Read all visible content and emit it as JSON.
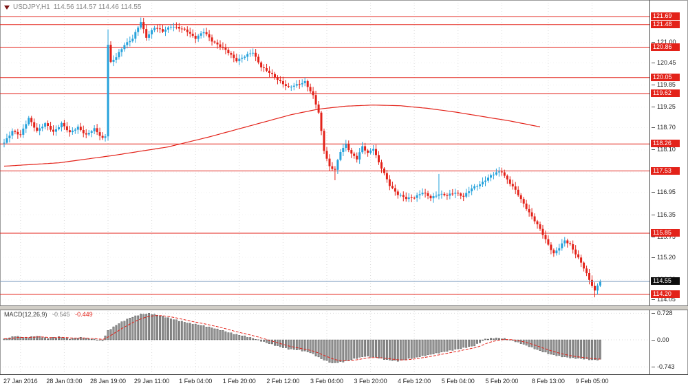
{
  "title": {
    "symbol": "USDJPY,H1",
    "ohlc": "114.56 114.57 114.46 114.55"
  },
  "colors": {
    "up": "#26a2db",
    "down": "#e32219",
    "level": "#e32219",
    "ma": "#e32219",
    "signal": "#e32219",
    "bid_line": "#7f9fc0",
    "level_label_bg": "#e32219",
    "bid_label_bg": "#0d0d0d",
    "macd_bar_fill": "#909090",
    "macd_bar_stroke": "#4a4a4a",
    "grid": "#dadada",
    "axis_text": "#1f1f1f",
    "title_text": "#878787"
  },
  "chart_data": {
    "type": "candlestick",
    "symbol": "USDJPY",
    "timeframe": "H1",
    "quote": {
      "open": 114.56,
      "high": 114.57,
      "low": 114.46,
      "close": 114.55
    },
    "ylim": [
      113.92,
      122.07
    ],
    "total_bars": 236,
    "bars_drawn": 219,
    "y_ticks": [
      [
        121.0,
        "121.00"
      ],
      [
        120.45,
        "120.45"
      ],
      [
        119.85,
        "119.85"
      ],
      [
        119.25,
        "119.25"
      ],
      [
        118.7,
        "118.70"
      ],
      [
        118.1,
        "118.10"
      ],
      [
        117.5,
        "117.50"
      ],
      [
        116.95,
        "116.95"
      ],
      [
        116.35,
        "116.35"
      ],
      [
        115.75,
        "115.75"
      ],
      [
        115.2,
        "115.20"
      ],
      [
        114.6,
        "114.60"
      ],
      [
        114.05,
        "114.05"
      ]
    ],
    "x_labels": [
      [
        6,
        "27 Jan 2016"
      ],
      [
        22,
        "28 Jan 03:00"
      ],
      [
        38,
        "28 Jan 19:00"
      ],
      [
        54,
        "29 Jan 11:00"
      ],
      [
        70,
        "1 Feb 04:00"
      ],
      [
        86,
        "1 Feb 20:00"
      ],
      [
        102,
        "2 Feb 12:00"
      ],
      [
        118,
        "3 Feb 04:00"
      ],
      [
        134,
        "3 Feb 20:00"
      ],
      [
        150,
        "4 Feb 12:00"
      ],
      [
        166,
        "5 Feb 04:00"
      ],
      [
        182,
        "5 Feb 20:00"
      ],
      [
        199,
        "8 Feb 13:00"
      ],
      [
        215,
        "9 Feb 05:00"
      ]
    ],
    "levels": [
      [
        121.69,
        "121.69"
      ],
      [
        121.48,
        "121.48"
      ],
      [
        120.86,
        "120.86"
      ],
      [
        120.05,
        "120.05"
      ],
      [
        119.62,
        "119.62"
      ],
      [
        118.26,
        "118.26"
      ],
      [
        117.53,
        "117.53"
      ],
      [
        115.85,
        "115.85"
      ],
      [
        114.2,
        "114.20"
      ]
    ],
    "bid": [
      114.55,
      "114.55"
    ],
    "price_path": [
      [
        0,
        118.28
      ],
      [
        3,
        118.62
      ],
      [
        6,
        118.5
      ],
      [
        9,
        118.95
      ],
      [
        12,
        118.62
      ],
      [
        15,
        118.8
      ],
      [
        18,
        118.58
      ],
      [
        21,
        118.82
      ],
      [
        24,
        118.55
      ],
      [
        27,
        118.72
      ],
      [
        30,
        118.5
      ],
      [
        33,
        118.66
      ],
      [
        36,
        118.42
      ],
      [
        37,
        118.48
      ],
      [
        38,
        120.95
      ],
      [
        39,
        120.45
      ],
      [
        41,
        120.6
      ],
      [
        44,
        120.95
      ],
      [
        47,
        121.1
      ],
      [
        50,
        121.55
      ],
      [
        52,
        121.15
      ],
      [
        55,
        121.4
      ],
      [
        58,
        121.3
      ],
      [
        61,
        121.45
      ],
      [
        64,
        121.38
      ],
      [
        67,
        121.3
      ],
      [
        70,
        121.12
      ],
      [
        73,
        121.28
      ],
      [
        76,
        121.05
      ],
      [
        79,
        120.9
      ],
      [
        82,
        120.72
      ],
      [
        85,
        120.52
      ],
      [
        88,
        120.62
      ],
      [
        91,
        120.73
      ],
      [
        94,
        120.35
      ],
      [
        98,
        120.12
      ],
      [
        101,
        119.95
      ],
      [
        104,
        119.78
      ],
      [
        107,
        119.85
      ],
      [
        110,
        119.95
      ],
      [
        113,
        119.55
      ],
      [
        115,
        119.1
      ],
      [
        117,
        118.1
      ],
      [
        119,
        117.65
      ],
      [
        121,
        117.55
      ],
      [
        123,
        118.05
      ],
      [
        125,
        118.25
      ],
      [
        127,
        118.0
      ],
      [
        129,
        117.85
      ],
      [
        131,
        118.18
      ],
      [
        133,
        118.02
      ],
      [
        135,
        118.15
      ],
      [
        137,
        117.75
      ],
      [
        139,
        117.45
      ],
      [
        141,
        117.15
      ],
      [
        144,
        116.9
      ],
      [
        147,
        116.78
      ],
      [
        150,
        116.83
      ],
      [
        153,
        116.95
      ],
      [
        156,
        116.8
      ],
      [
        159,
        116.92
      ],
      [
        162,
        116.86
      ],
      [
        165,
        116.95
      ],
      [
        168,
        116.85
      ],
      [
        171,
        117.05
      ],
      [
        174,
        117.18
      ],
      [
        177,
        117.35
      ],
      [
        180,
        117.48
      ],
      [
        182,
        117.52
      ],
      [
        184,
        117.3
      ],
      [
        187,
        117.0
      ],
      [
        190,
        116.65
      ],
      [
        193,
        116.3
      ],
      [
        196,
        115.95
      ],
      [
        199,
        115.55
      ],
      [
        201,
        115.3
      ],
      [
        203,
        115.45
      ],
      [
        205,
        115.65
      ],
      [
        207,
        115.55
      ],
      [
        209,
        115.3
      ],
      [
        211,
        115.05
      ],
      [
        213,
        114.75
      ],
      [
        215,
        114.45
      ],
      [
        216,
        114.3
      ],
      [
        217,
        114.45
      ],
      [
        218,
        114.55
      ]
    ],
    "wick_overrides": {
      "38": [
        121.35,
        118.35
      ],
      "50": [
        121.67,
        null
      ],
      "110": [
        120.05,
        null
      ],
      "121": [
        null,
        117.28
      ],
      "159": [
        117.45,
        null
      ],
      "216": [
        null,
        114.12
      ]
    },
    "ma_path": [
      [
        0,
        117.66
      ],
      [
        20,
        117.75
      ],
      [
        40,
        117.95
      ],
      [
        60,
        118.18
      ],
      [
        75,
        118.45
      ],
      [
        90,
        118.75
      ],
      [
        105,
        119.05
      ],
      [
        115,
        119.2
      ],
      [
        125,
        119.28
      ],
      [
        135,
        119.31
      ],
      [
        145,
        119.29
      ],
      [
        155,
        119.22
      ],
      [
        165,
        119.12
      ],
      [
        175,
        119.0
      ],
      [
        185,
        118.88
      ],
      [
        196,
        118.72
      ]
    ],
    "macd": {
      "label": "MACD(12,26,9)",
      "value": -0.545,
      "signal": -0.449,
      "value_display": "-0.545",
      "signal_display": "-0.449",
      "ticks": [
        [
          0.728,
          "0.728"
        ],
        [
          0.0,
          "0.00"
        ],
        [
          -0.743,
          "-0.743"
        ]
      ],
      "path": [
        [
          0,
          0.02
        ],
        [
          4,
          0.1
        ],
        [
          8,
          0.06
        ],
        [
          12,
          0.1
        ],
        [
          16,
          0.04
        ],
        [
          20,
          0.08
        ],
        [
          24,
          0.03
        ],
        [
          28,
          0.06
        ],
        [
          32,
          0.02
        ],
        [
          36,
          -0.02
        ],
        [
          38,
          0.25
        ],
        [
          42,
          0.45
        ],
        [
          46,
          0.6
        ],
        [
          50,
          0.7
        ],
        [
          53,
          0.72
        ],
        [
          56,
          0.68
        ],
        [
          60,
          0.6
        ],
        [
          64,
          0.52
        ],
        [
          68,
          0.45
        ],
        [
          72,
          0.4
        ],
        [
          76,
          0.33
        ],
        [
          80,
          0.25
        ],
        [
          84,
          0.16
        ],
        [
          88,
          0.1
        ],
        [
          92,
          0.02
        ],
        [
          96,
          -0.08
        ],
        [
          100,
          -0.17
        ],
        [
          104,
          -0.25
        ],
        [
          108,
          -0.28
        ],
        [
          112,
          -0.35
        ],
        [
          116,
          -0.52
        ],
        [
          120,
          -0.64
        ],
        [
          124,
          -0.6
        ],
        [
          128,
          -0.52
        ],
        [
          132,
          -0.45
        ],
        [
          136,
          -0.48
        ],
        [
          140,
          -0.55
        ],
        [
          144,
          -0.58
        ],
        [
          148,
          -0.52
        ],
        [
          152,
          -0.46
        ],
        [
          156,
          -0.4
        ],
        [
          160,
          -0.34
        ],
        [
          164,
          -0.28
        ],
        [
          168,
          -0.22
        ],
        [
          172,
          -0.16
        ],
        [
          176,
          0.02
        ],
        [
          180,
          0.05
        ],
        [
          183,
          0.03
        ],
        [
          186,
          -0.02
        ],
        [
          189,
          -0.1
        ],
        [
          192,
          -0.18
        ],
        [
          196,
          -0.3
        ],
        [
          200,
          -0.4
        ],
        [
          204,
          -0.46
        ],
        [
          208,
          -0.5
        ],
        [
          212,
          -0.52
        ],
        [
          215,
          -0.55
        ],
        [
          218,
          -0.545
        ]
      ]
    }
  }
}
